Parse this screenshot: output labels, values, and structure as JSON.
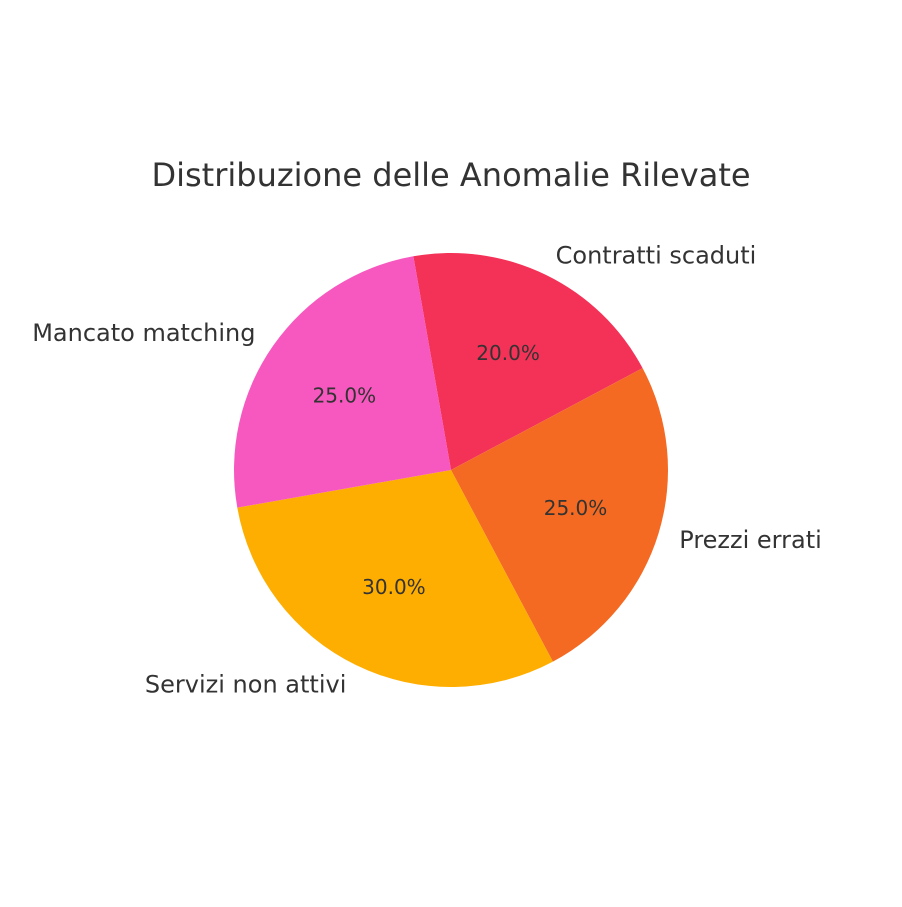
{
  "chart_data": {
    "type": "pie",
    "title": "Distribuzione delle Anomalie Rilevate",
    "start_angle_deg": 100,
    "direction": "clockwise",
    "slices": [
      {
        "label": "Contratti scaduti",
        "value": 20.0,
        "pct_label": "20.0%",
        "color": "#F43257"
      },
      {
        "label": "Prezzi errati",
        "value": 25.0,
        "pct_label": "25.0%",
        "color": "#F46A22"
      },
      {
        "label": "Servizi non attivi",
        "value": 30.0,
        "pct_label": "30.0%",
        "color": "#FEAE01"
      },
      {
        "label": "Mancato matching",
        "value": 25.0,
        "pct_label": "25.0%",
        "color": "#F758BF"
      }
    ]
  }
}
